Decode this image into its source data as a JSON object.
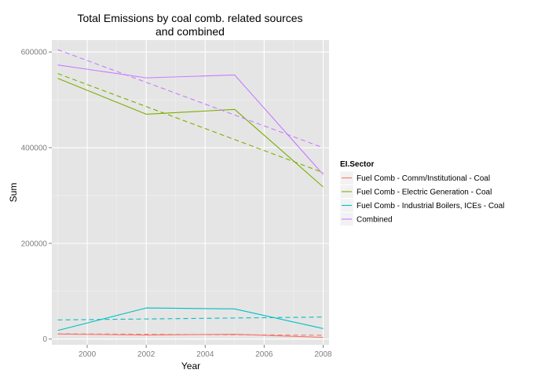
{
  "chart_data": {
    "type": "line",
    "title_lines": [
      "Total Emissions by coal comb. related sources",
      "and combined"
    ],
    "xlabel": "Year",
    "ylabel": "Sum",
    "x": [
      1999,
      2002,
      2005,
      2008
    ],
    "xlim": [
      1998.8,
      2008.2
    ],
    "ylim": [
      -12000,
      625000
    ],
    "xticks": [
      2000,
      2002,
      2004,
      2006,
      2008
    ],
    "yticks": [
      0,
      200000,
      400000,
      600000
    ],
    "grid": true,
    "background": "#e5e5e5",
    "legend": {
      "title": "EI.Sector",
      "position": "right"
    },
    "series": [
      {
        "name": "Fuel Comb - Comm/Institutional - Coal",
        "color": "#f8766d",
        "values": [
          10500,
          8500,
          10000,
          3500
        ],
        "trend": [
          11000,
          8000
        ]
      },
      {
        "name": "Fuel Comb - Electric Generation - Coal",
        "color": "#7cae00",
        "values": [
          545000,
          470000,
          480000,
          318000
        ],
        "trend": [
          555000,
          348000
        ]
      },
      {
        "name": "Fuel Comb - Industrial Boilers, ICEs - Coal",
        "color": "#00bfc4",
        "values": [
          18000,
          65000,
          63000,
          22000
        ],
        "trend": [
          40000,
          46000
        ]
      },
      {
        "name": "Combined",
        "color": "#c77cff",
        "values": [
          573000,
          546000,
          552000,
          344000
        ],
        "trend": [
          605000,
          400000
        ]
      }
    ]
  }
}
